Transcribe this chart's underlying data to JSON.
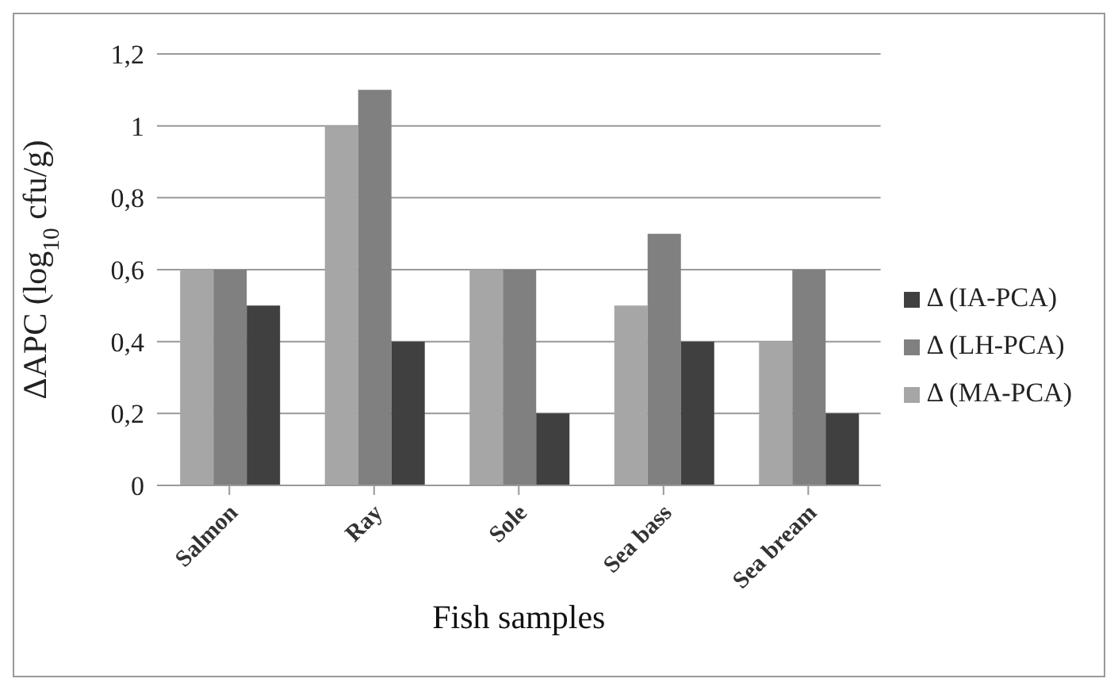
{
  "chart_data": {
    "type": "bar",
    "xlabel": "Fish samples",
    "ylabel": "ΔAPC (log$_{10}$ cfu/g)",
    "categories": [
      "Salmon",
      "Ray",
      "Sole",
      "Sea bass",
      "Sea bream"
    ],
    "series": [
      {
        "name": "Δ (MA-PCA)",
        "color": "#a6a6a6",
        "values": [
          0.6,
          1.0,
          0.6,
          0.5,
          0.4
        ]
      },
      {
        "name": "Δ (LH-PCA)",
        "color": "#808080",
        "values": [
          0.6,
          1.1,
          0.6,
          0.7,
          0.6
        ]
      },
      {
        "name": "Δ (IA-PCA)",
        "color": "#404040",
        "values": [
          0.5,
          0.4,
          0.2,
          0.4,
          0.2
        ]
      }
    ],
    "ylim": [
      0,
      1.2
    ],
    "yticks": [
      0,
      {
        "value": 0.2,
        "label": "0,2"
      },
      {
        "value": 0.4,
        "label": "0,4"
      },
      {
        "value": 0.6,
        "label": "0,6"
      },
      {
        "value": 0.8,
        "label": "0,8"
      },
      1,
      {
        "value": 1.2,
        "label": "1,2"
      }
    ],
    "grid": "y",
    "legend": "right"
  }
}
